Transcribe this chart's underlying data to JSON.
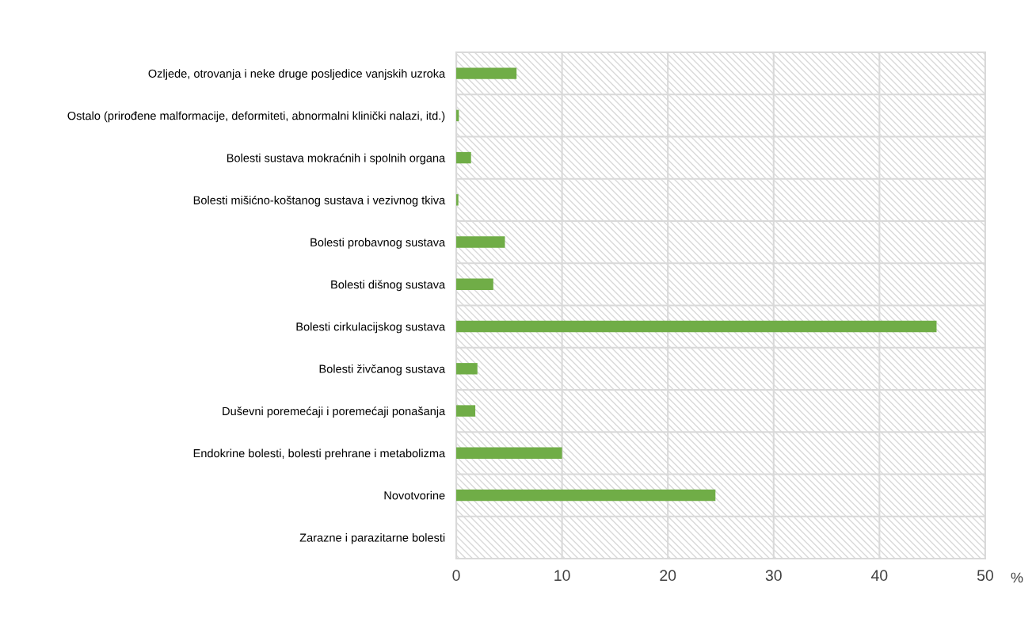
{
  "chart_data": {
    "type": "bar",
    "orientation": "horizontal",
    "xlabel": "%",
    "categories": [
      "Ozljede, otrovanja i neke druge posljedice vanjskih uzroka",
      "Ostalo (prirođene malformacije, deformiteti, abnormalni klinički nalazi, itd.)",
      "Bolesti sustava mokraćnih i spolnih organa",
      "Bolesti mišićno-koštanog sustava i vezivnog tkiva",
      "Bolesti probavnog sustava",
      "Bolesti dišnog sustava",
      "Bolesti cirkulacijskog sustava",
      "Bolesti živčanog sustava",
      "Duševni poremećaji i poremećaji ponašanja",
      "Endokrine bolesti, bolesti prehrane i metabolizma",
      "Novotvorine",
      "Zarazne i parazitarne bolesti"
    ],
    "values": [
      5.7,
      0.25,
      1.4,
      0.2,
      4.6,
      3.5,
      45.4,
      2.0,
      1.8,
      10.0,
      24.5,
      0
    ],
    "color": "#70ad47",
    "xlim": [
      0,
      50
    ],
    "xticks": [
      0,
      10,
      20,
      30,
      40,
      50
    ],
    "grid": true,
    "legend": false
  }
}
